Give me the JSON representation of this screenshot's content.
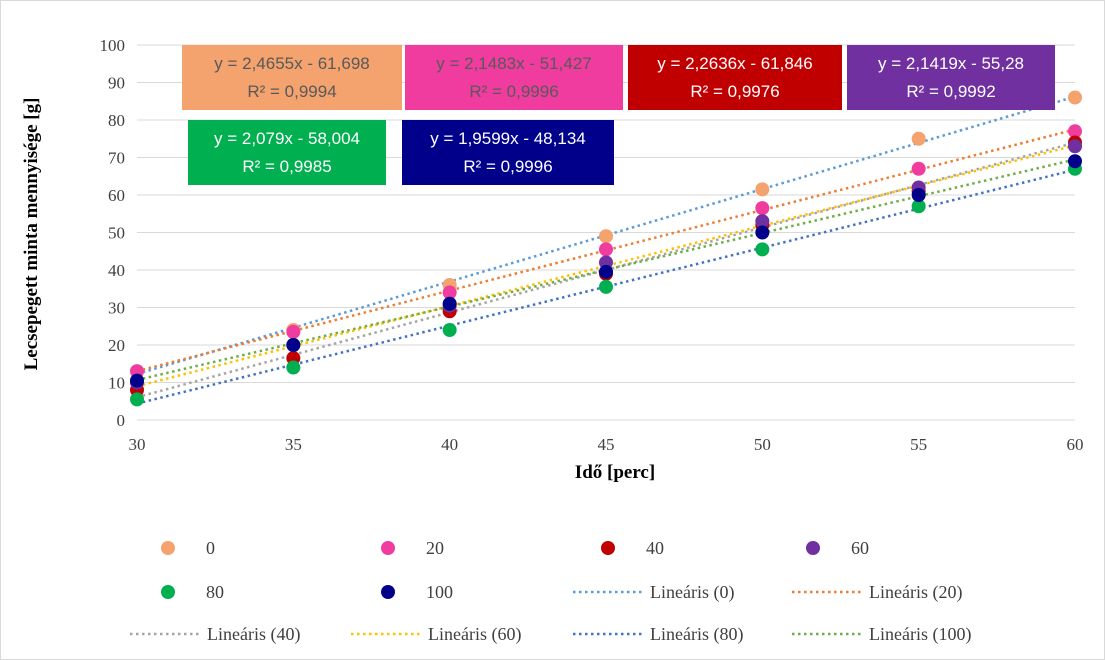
{
  "chart_data": {
    "type": "scatter",
    "title": "",
    "xlabel": "Idő [perc]",
    "ylabel": "Lecsepegett minta mennyisége [g]",
    "xlim": [
      30,
      60
    ],
    "ylim": [
      0,
      100
    ],
    "x_ticks": [
      "30",
      "35",
      "40",
      "45",
      "50",
      "55",
      "60"
    ],
    "y_ticks": [
      "0",
      "10",
      "20",
      "30",
      "40",
      "50",
      "60",
      "70",
      "80",
      "90",
      "100"
    ],
    "grid": "horizontal",
    "legend_position": "bottom",
    "series": [
      {
        "name": "0",
        "color": "#F4A26E",
        "x": [
          30,
          35,
          40,
          45,
          50,
          55,
          60
        ],
        "y": [
          13,
          24,
          36,
          49,
          61.5,
          75,
          86
        ]
      },
      {
        "name": "20",
        "color": "#F03C9E",
        "x": [
          30,
          35,
          40,
          45,
          50,
          55,
          60
        ],
        "y": [
          13,
          23.5,
          34,
          45.5,
          56.5,
          67,
          77
        ]
      },
      {
        "name": "40",
        "color": "#C00000",
        "x": [
          30,
          35,
          40,
          45,
          50,
          55,
          60
        ],
        "y": [
          8,
          16.5,
          29,
          39,
          52,
          61,
          74
        ]
      },
      {
        "name": "60",
        "color": "#7030A0",
        "x": [
          30,
          35,
          40,
          45,
          50,
          55,
          60
        ],
        "y": [
          10,
          20,
          30.5,
          42,
          53,
          62,
          73
        ]
      },
      {
        "name": "80",
        "color": "#00B050",
        "x": [
          30,
          35,
          40,
          45,
          50,
          55,
          60
        ],
        "y": [
          5.5,
          14,
          24,
          35.5,
          45.5,
          57,
          67
        ]
      },
      {
        "name": "100",
        "color": "#00008B",
        "x": [
          30,
          35,
          40,
          45,
          50,
          55,
          60
        ],
        "y": [
          10.5,
          20,
          31,
          39.5,
          50,
          60,
          69
        ]
      }
    ],
    "trendlines": [
      {
        "name": "Lineáris (0)",
        "color": "#5B9BD5",
        "slope": 2.4655,
        "intercept": -61.698
      },
      {
        "name": "Lineáris (20)",
        "color": "#ED7D31",
        "slope": 2.1483,
        "intercept": -51.427
      },
      {
        "name": "Lineáris (40)",
        "color": "#A5A5A5",
        "slope": 2.2636,
        "intercept": -61.846
      },
      {
        "name": "Lineáris (60)",
        "color": "#FFC000",
        "slope": 2.1419,
        "intercept": -55.28
      },
      {
        "name": "Lineáris (80)",
        "color": "#4472C4",
        "slope": 2.079,
        "intercept": -58.004
      },
      {
        "name": "Lineáris (100)",
        "color": "#70AD47",
        "slope": 1.9599,
        "intercept": -48.134
      }
    ],
    "equations": [
      {
        "eq": "y = 2,4655x - 61,698",
        "r2": "R² = 0,9994",
        "bg": "#F4A26E",
        "fg": "#595959"
      },
      {
        "eq": "y = 2,1483x - 51,427",
        "r2": "R² = 0,9996",
        "bg": "#F03C9E",
        "fg": "#595959"
      },
      {
        "eq": "y = 2,2636x - 61,846",
        "r2": "R² = 0,9976",
        "bg": "#C00000",
        "fg": "#ffffff"
      },
      {
        "eq": "y = 2,1419x - 55,28",
        "r2": "R² = 0,9992",
        "bg": "#7030A0",
        "fg": "#ffffff"
      },
      {
        "eq": "y = 2,079x - 58,004",
        "r2": "R² = 0,9985",
        "bg": "#00B050",
        "fg": "#ffffff"
      },
      {
        "eq": "y = 1,9599x - 48,134",
        "r2": "R² = 0,9996",
        "bg": "#00008B",
        "fg": "#ffffff"
      }
    ]
  }
}
